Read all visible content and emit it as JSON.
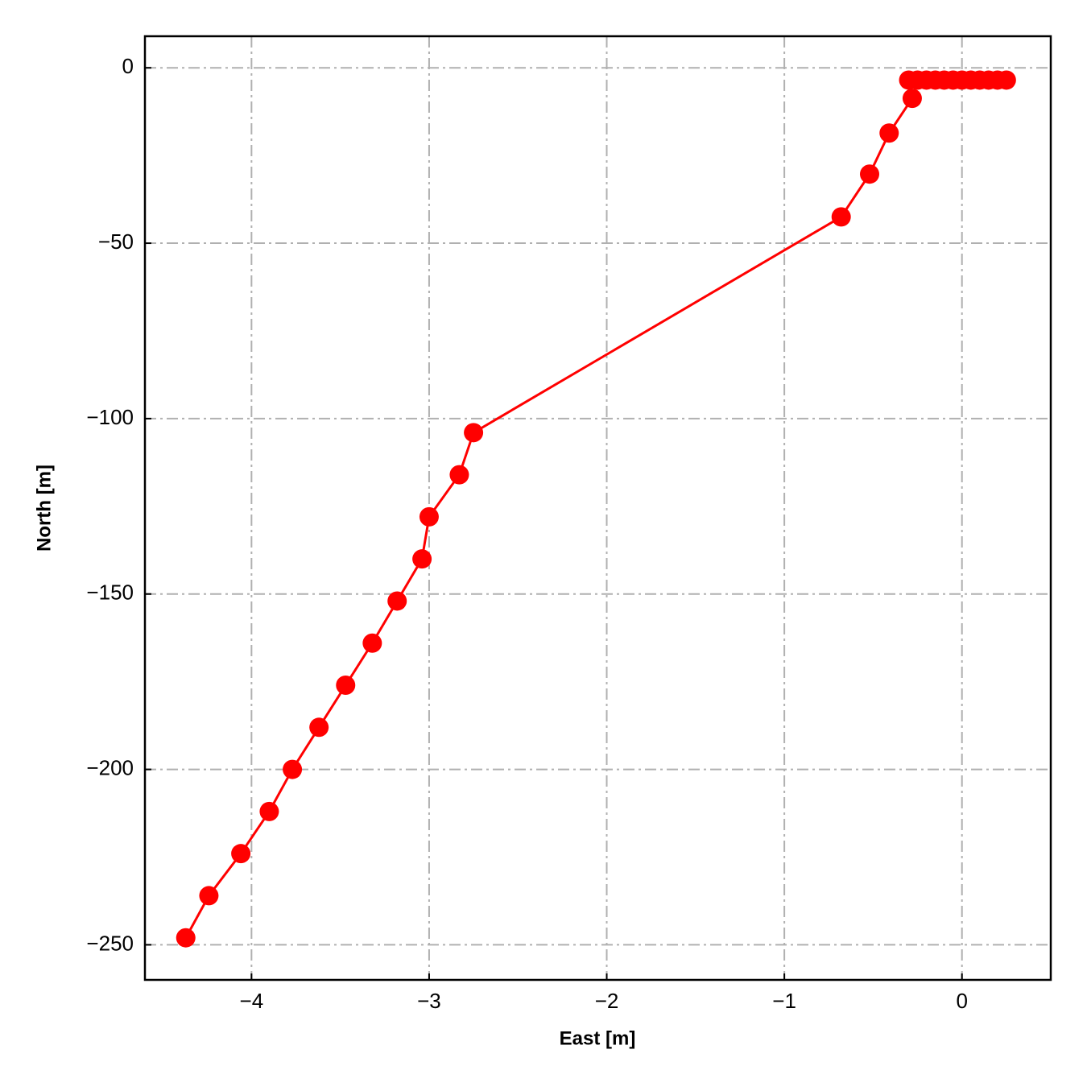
{
  "chart_data": {
    "type": "line",
    "x_label": "East [m]",
    "y_label": "North [m]",
    "x": [
      -4.37,
      -4.24,
      -4.06,
      -3.9,
      -3.77,
      -3.62,
      -3.47,
      -3.32,
      -3.18,
      -3.04,
      -3.0,
      -2.83,
      -2.75,
      -0.68,
      -0.52,
      -0.41,
      -0.28,
      -0.3,
      -0.25,
      -0.2,
      -0.15,
      -0.1,
      -0.05,
      0,
      0.05,
      0.1,
      0.15,
      0.2,
      0.25
    ],
    "series": [
      {
        "color": "#ff0000",
        "values": [
          -248,
          -236,
          -224,
          -212,
          -200,
          -188,
          -176,
          -164,
          -152,
          -140,
          -128,
          -116,
          -104,
          -42.5,
          -30.3,
          -18.6,
          -8.7,
          -3.5,
          -3.5,
          -3.5,
          -3.5,
          -3.5,
          -3.5,
          -3.5,
          -3.5,
          -3.5,
          -3.5,
          -3.5,
          -3.5
        ]
      }
    ],
    "xlim": [
      -4.6,
      0.5
    ],
    "ylim": [
      -260,
      9
    ],
    "xticks": [
      {
        "value": -4,
        "label": "−4"
      },
      {
        "value": -3,
        "label": "−3"
      },
      {
        "value": -2,
        "label": "−2"
      },
      {
        "value": -1,
        "label": "−1"
      },
      0
    ],
    "yticks": [
      0,
      {
        "value": -50,
        "label": "−50"
      },
      {
        "value": -100,
        "label": "−100"
      },
      {
        "value": -150,
        "label": "−150"
      },
      {
        "value": -200,
        "label": "−200"
      },
      {
        "value": -250,
        "label": "−250"
      }
    ],
    "grid": true
  }
}
